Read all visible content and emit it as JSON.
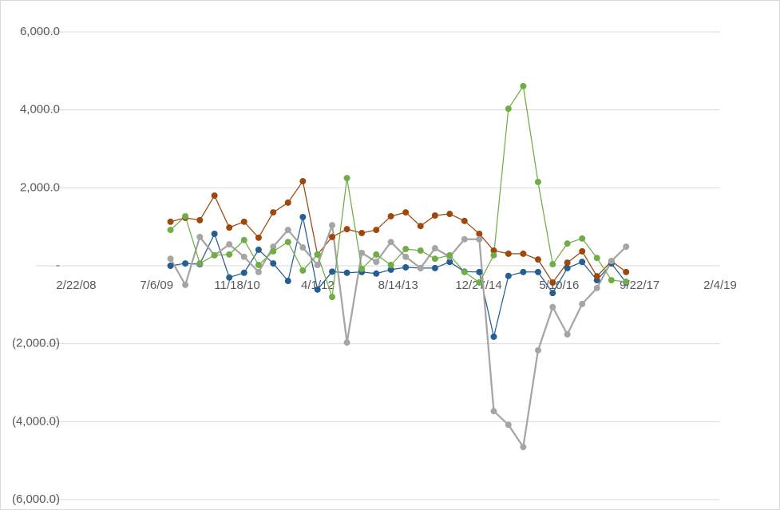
{
  "chart_data": {
    "type": "line",
    "x": [
      "9/30/09",
      "12/31/09",
      "3/31/10",
      "6/30/10",
      "9/30/10",
      "12/31/10",
      "3/31/11",
      "6/30/11",
      "9/30/11",
      "12/31/11",
      "3/31/12",
      "6/30/12",
      "9/30/12",
      "12/31/12",
      "3/31/13",
      "6/30/13",
      "9/30/13",
      "12/31/13",
      "3/31/14",
      "6/30/14",
      "9/30/14",
      "12/31/14",
      "3/31/15",
      "6/30/15",
      "9/30/15",
      "12/31/15",
      "3/31/16",
      "6/30/16",
      "9/30/16",
      "12/31/16",
      "3/31/17",
      "6/30/17"
    ],
    "series": [
      {
        "color": "#255e91",
        "values": [
          0,
          60,
          40,
          820,
          -300,
          -180,
          410,
          60,
          -390,
          1250,
          -610,
          -150,
          -180,
          -160,
          -200,
          -100,
          -40,
          -60,
          -60,
          100,
          -150,
          -160,
          -1820,
          -260,
          -160,
          -160,
          -700,
          -60,
          100,
          -370,
          60,
          -430
        ]
      },
      {
        "color": "#9e480e",
        "values": [
          1130,
          1230,
          1170,
          1800,
          980,
          1130,
          720,
          1370,
          1620,
          2170,
          290,
          740,
          940,
          840,
          920,
          1270,
          1370,
          1020,
          1290,
          1330,
          1150,
          820,
          390,
          310,
          310,
          160,
          -430,
          80,
          370,
          -270,
          120,
          -160
        ]
      },
      {
        "color": "#a5a5a5",
        "values": [
          180,
          -490,
          740,
          270,
          550,
          230,
          -160,
          490,
          920,
          470,
          20,
          1040,
          -1970,
          330,
          100,
          610,
          230,
          -60,
          450,
          230,
          680,
          680,
          -3730,
          -4080,
          -4650,
          -2170,
          -1060,
          -1760,
          -980,
          -570,
          120,
          490
        ]
      },
      {
        "color": "#70ad47",
        "values": [
          920,
          1270,
          60,
          270,
          290,
          660,
          20,
          370,
          610,
          -120,
          290,
          -800,
          2250,
          -80,
          290,
          20,
          430,
          390,
          180,
          270,
          -160,
          -430,
          270,
          4030,
          4610,
          2150,
          40,
          570,
          700,
          200,
          -370,
          -410
        ]
      }
    ],
    "xlim": [
      "6/17/07",
      "2/4/19"
    ],
    "xticks": [
      "2/22/08",
      "7/6/09",
      "11/18/10",
      "4/1/12",
      "8/14/13",
      "12/27/14",
      "5/10/16",
      "9/22/17",
      "2/4/19"
    ],
    "ylim": [
      -6000,
      6000
    ],
    "yticks": [
      {
        "value": 6000,
        "label": "6,000.0"
      },
      {
        "value": 4000,
        "label": "4,000.0"
      },
      {
        "value": 2000,
        "label": "2,000.0"
      },
      {
        "value": 0,
        "label": "-"
      },
      {
        "value": -2000,
        "label": "(2,000.0)"
      },
      {
        "value": -4000,
        "label": "(4,000.0)"
      },
      {
        "value": -6000,
        "label": "(6,000.0)"
      }
    ],
    "grid": true
  }
}
